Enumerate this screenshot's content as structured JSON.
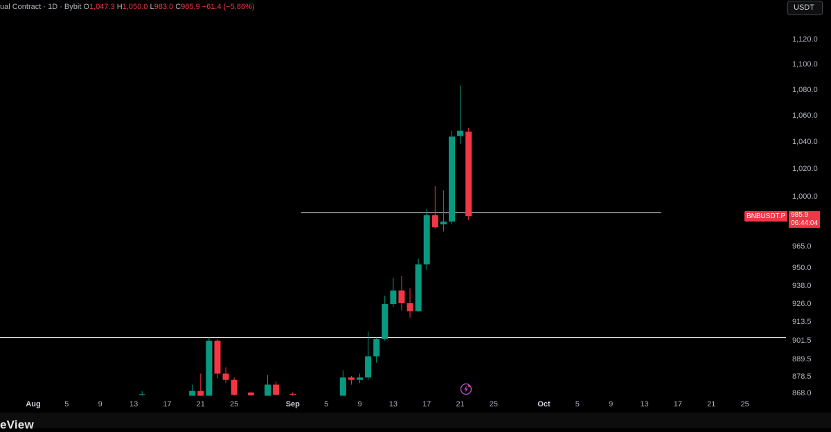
{
  "legend": {
    "title": "ual Contract · 1D · Bybit",
    "o_label": "O",
    "o_value": "1,047.3",
    "h_label": "H",
    "h_value": "1,050.0",
    "l_label": "L",
    "l_value": "983.0",
    "c_label": "C",
    "c_value": "985.9",
    "change": "−61.4 (−5.86%)"
  },
  "currency_button": "USDT",
  "price_tag": {
    "symbol": "BNBUSDT.P",
    "price": "985.9",
    "countdown": "06:44:04"
  },
  "brand": "eView",
  "colors": {
    "up": "#089981",
    "down": "#f23645",
    "background": "#000000",
    "axis_text": "#b2b5be",
    "hline": "#ffffff",
    "icon": "#c055d8"
  },
  "icons": {
    "flash": "lightning-icon"
  },
  "chart_data": {
    "type": "candlestick",
    "y_ticks": [
      {
        "value": 1120.0,
        "label": "1,120.0"
      },
      {
        "value": 1100.0,
        "label": "1,100.0"
      },
      {
        "value": 1080.0,
        "label": "1,080.0"
      },
      {
        "value": 1060.0,
        "label": "1,060.0"
      },
      {
        "value": 1040.0,
        "label": "1,040.0"
      },
      {
        "value": 1020.0,
        "label": "1,020.0"
      },
      {
        "value": 1000.0,
        "label": "1,000.0"
      },
      {
        "value": 965.0,
        "label": "965.0"
      },
      {
        "value": 950.0,
        "label": "950.0"
      },
      {
        "value": 938.0,
        "label": "938.0"
      },
      {
        "value": 926.0,
        "label": "926.0"
      },
      {
        "value": 913.5,
        "label": "913.5"
      },
      {
        "value": 901.5,
        "label": "901.5"
      },
      {
        "value": 889.5,
        "label": "889.5"
      },
      {
        "value": 878.5,
        "label": "878.5"
      },
      {
        "value": 868.0,
        "label": "868.0"
      }
    ],
    "x_ticks": [
      {
        "date": "2025-08-01",
        "label": "Aug",
        "bold": true
      },
      {
        "date": "2025-08-05",
        "label": "5"
      },
      {
        "date": "2025-08-09",
        "label": "9"
      },
      {
        "date": "2025-08-13",
        "label": "13"
      },
      {
        "date": "2025-08-17",
        "label": "17"
      },
      {
        "date": "2025-08-21",
        "label": "21"
      },
      {
        "date": "2025-08-25",
        "label": "25"
      },
      {
        "date": "2025-09-01",
        "label": "Sep",
        "bold": true
      },
      {
        "date": "2025-09-05",
        "label": "5"
      },
      {
        "date": "2025-09-09",
        "label": "9"
      },
      {
        "date": "2025-09-13",
        "label": "13"
      },
      {
        "date": "2025-09-17",
        "label": "17"
      },
      {
        "date": "2025-09-21",
        "label": "21"
      },
      {
        "date": "2025-09-25",
        "label": "25"
      },
      {
        "date": "2025-10-01",
        "label": "Oct",
        "bold": true
      },
      {
        "date": "2025-10-05",
        "label": "5"
      },
      {
        "date": "2025-10-09",
        "label": "9"
      },
      {
        "date": "2025-10-13",
        "label": "13"
      },
      {
        "date": "2025-10-17",
        "label": "17"
      },
      {
        "date": "2025-10-21",
        "label": "21"
      },
      {
        "date": "2025-10-25",
        "label": "25"
      }
    ],
    "horizontal_lines": [
      {
        "price": 988.3,
        "from": "2025-09-02",
        "to": "2025-10-15"
      },
      {
        "price": 903.0,
        "from": "2025-07-27",
        "to": "2025-10-30"
      }
    ],
    "candles": [
      {
        "date": "2025-08-14",
        "open": 866.5,
        "high": 868.8,
        "low": 866.0,
        "close": 867.0
      },
      {
        "date": "2025-08-20",
        "open": 866.0,
        "high": 873.0,
        "low": 866.0,
        "close": 869.0
      },
      {
        "date": "2025-08-21",
        "open": 869.0,
        "high": 880.0,
        "low": 866.0,
        "close": 866.0
      },
      {
        "date": "2025-08-22",
        "open": 866.0,
        "high": 903.0,
        "low": 866.0,
        "close": 901.0
      },
      {
        "date": "2025-08-23",
        "open": 901.0,
        "high": 902.0,
        "low": 877.0,
        "close": 880.0
      },
      {
        "date": "2025-08-24",
        "open": 880.0,
        "high": 884.0,
        "low": 874.0,
        "close": 876.0
      },
      {
        "date": "2025-08-25",
        "open": 876.0,
        "high": 877.5,
        "low": 866.0,
        "close": 866.5
      },
      {
        "date": "2025-08-27",
        "open": 868.0,
        "high": 868.6,
        "low": 866.0,
        "close": 866.2
      },
      {
        "date": "2025-08-29",
        "open": 866.0,
        "high": 879.0,
        "low": 866.0,
        "close": 873.0
      },
      {
        "date": "2025-08-30",
        "open": 873.0,
        "high": 875.0,
        "low": 866.0,
        "close": 866.5
      },
      {
        "date": "2025-09-01",
        "open": 867.2,
        "high": 868.2,
        "low": 866.0,
        "close": 866.6
      },
      {
        "date": "2025-09-07",
        "open": 866.0,
        "high": 882.0,
        "low": 866.0,
        "close": 877.5
      },
      {
        "date": "2025-09-08",
        "open": 877.5,
        "high": 878.5,
        "low": 873.0,
        "close": 876.0
      },
      {
        "date": "2025-09-09",
        "open": 876.0,
        "high": 880.0,
        "low": 874.0,
        "close": 877.5
      },
      {
        "date": "2025-09-10",
        "open": 877.5,
        "high": 907.0,
        "low": 876.0,
        "close": 891.0
      },
      {
        "date": "2025-09-11",
        "open": 891.0,
        "high": 903.0,
        "low": 887.0,
        "close": 902.0
      },
      {
        "date": "2025-09-12",
        "open": 902.0,
        "high": 931.0,
        "low": 901.0,
        "close": 925.5
      },
      {
        "date": "2025-09-13",
        "open": 925.5,
        "high": 943.0,
        "low": 923.5,
        "close": 934.5
      },
      {
        "date": "2025-09-14",
        "open": 934.5,
        "high": 944.0,
        "low": 921.0,
        "close": 926.0
      },
      {
        "date": "2025-09-15",
        "open": 926.0,
        "high": 936.0,
        "low": 916.0,
        "close": 920.5
      },
      {
        "date": "2025-09-16",
        "open": 920.5,
        "high": 956.0,
        "low": 920.0,
        "close": 952.0
      },
      {
        "date": "2025-09-17",
        "open": 952.0,
        "high": 991.0,
        "low": 948.0,
        "close": 986.5
      },
      {
        "date": "2025-09-18",
        "open": 986.5,
        "high": 1007.0,
        "low": 977.0,
        "close": 978.0
      },
      {
        "date": "2025-09-19",
        "open": 980.0,
        "high": 1004.0,
        "low": 975.0,
        "close": 982.0
      },
      {
        "date": "2025-09-20",
        "open": 982.0,
        "high": 1048.0,
        "low": 980.0,
        "close": 1043.5
      },
      {
        "date": "2025-09-21",
        "open": 1044.0,
        "high": 1083.0,
        "low": 1038.0,
        "close": 1048.0
      },
      {
        "date": "2025-09-22",
        "open": 1047.3,
        "high": 1050.0,
        "low": 983.0,
        "close": 985.9
      }
    ]
  }
}
